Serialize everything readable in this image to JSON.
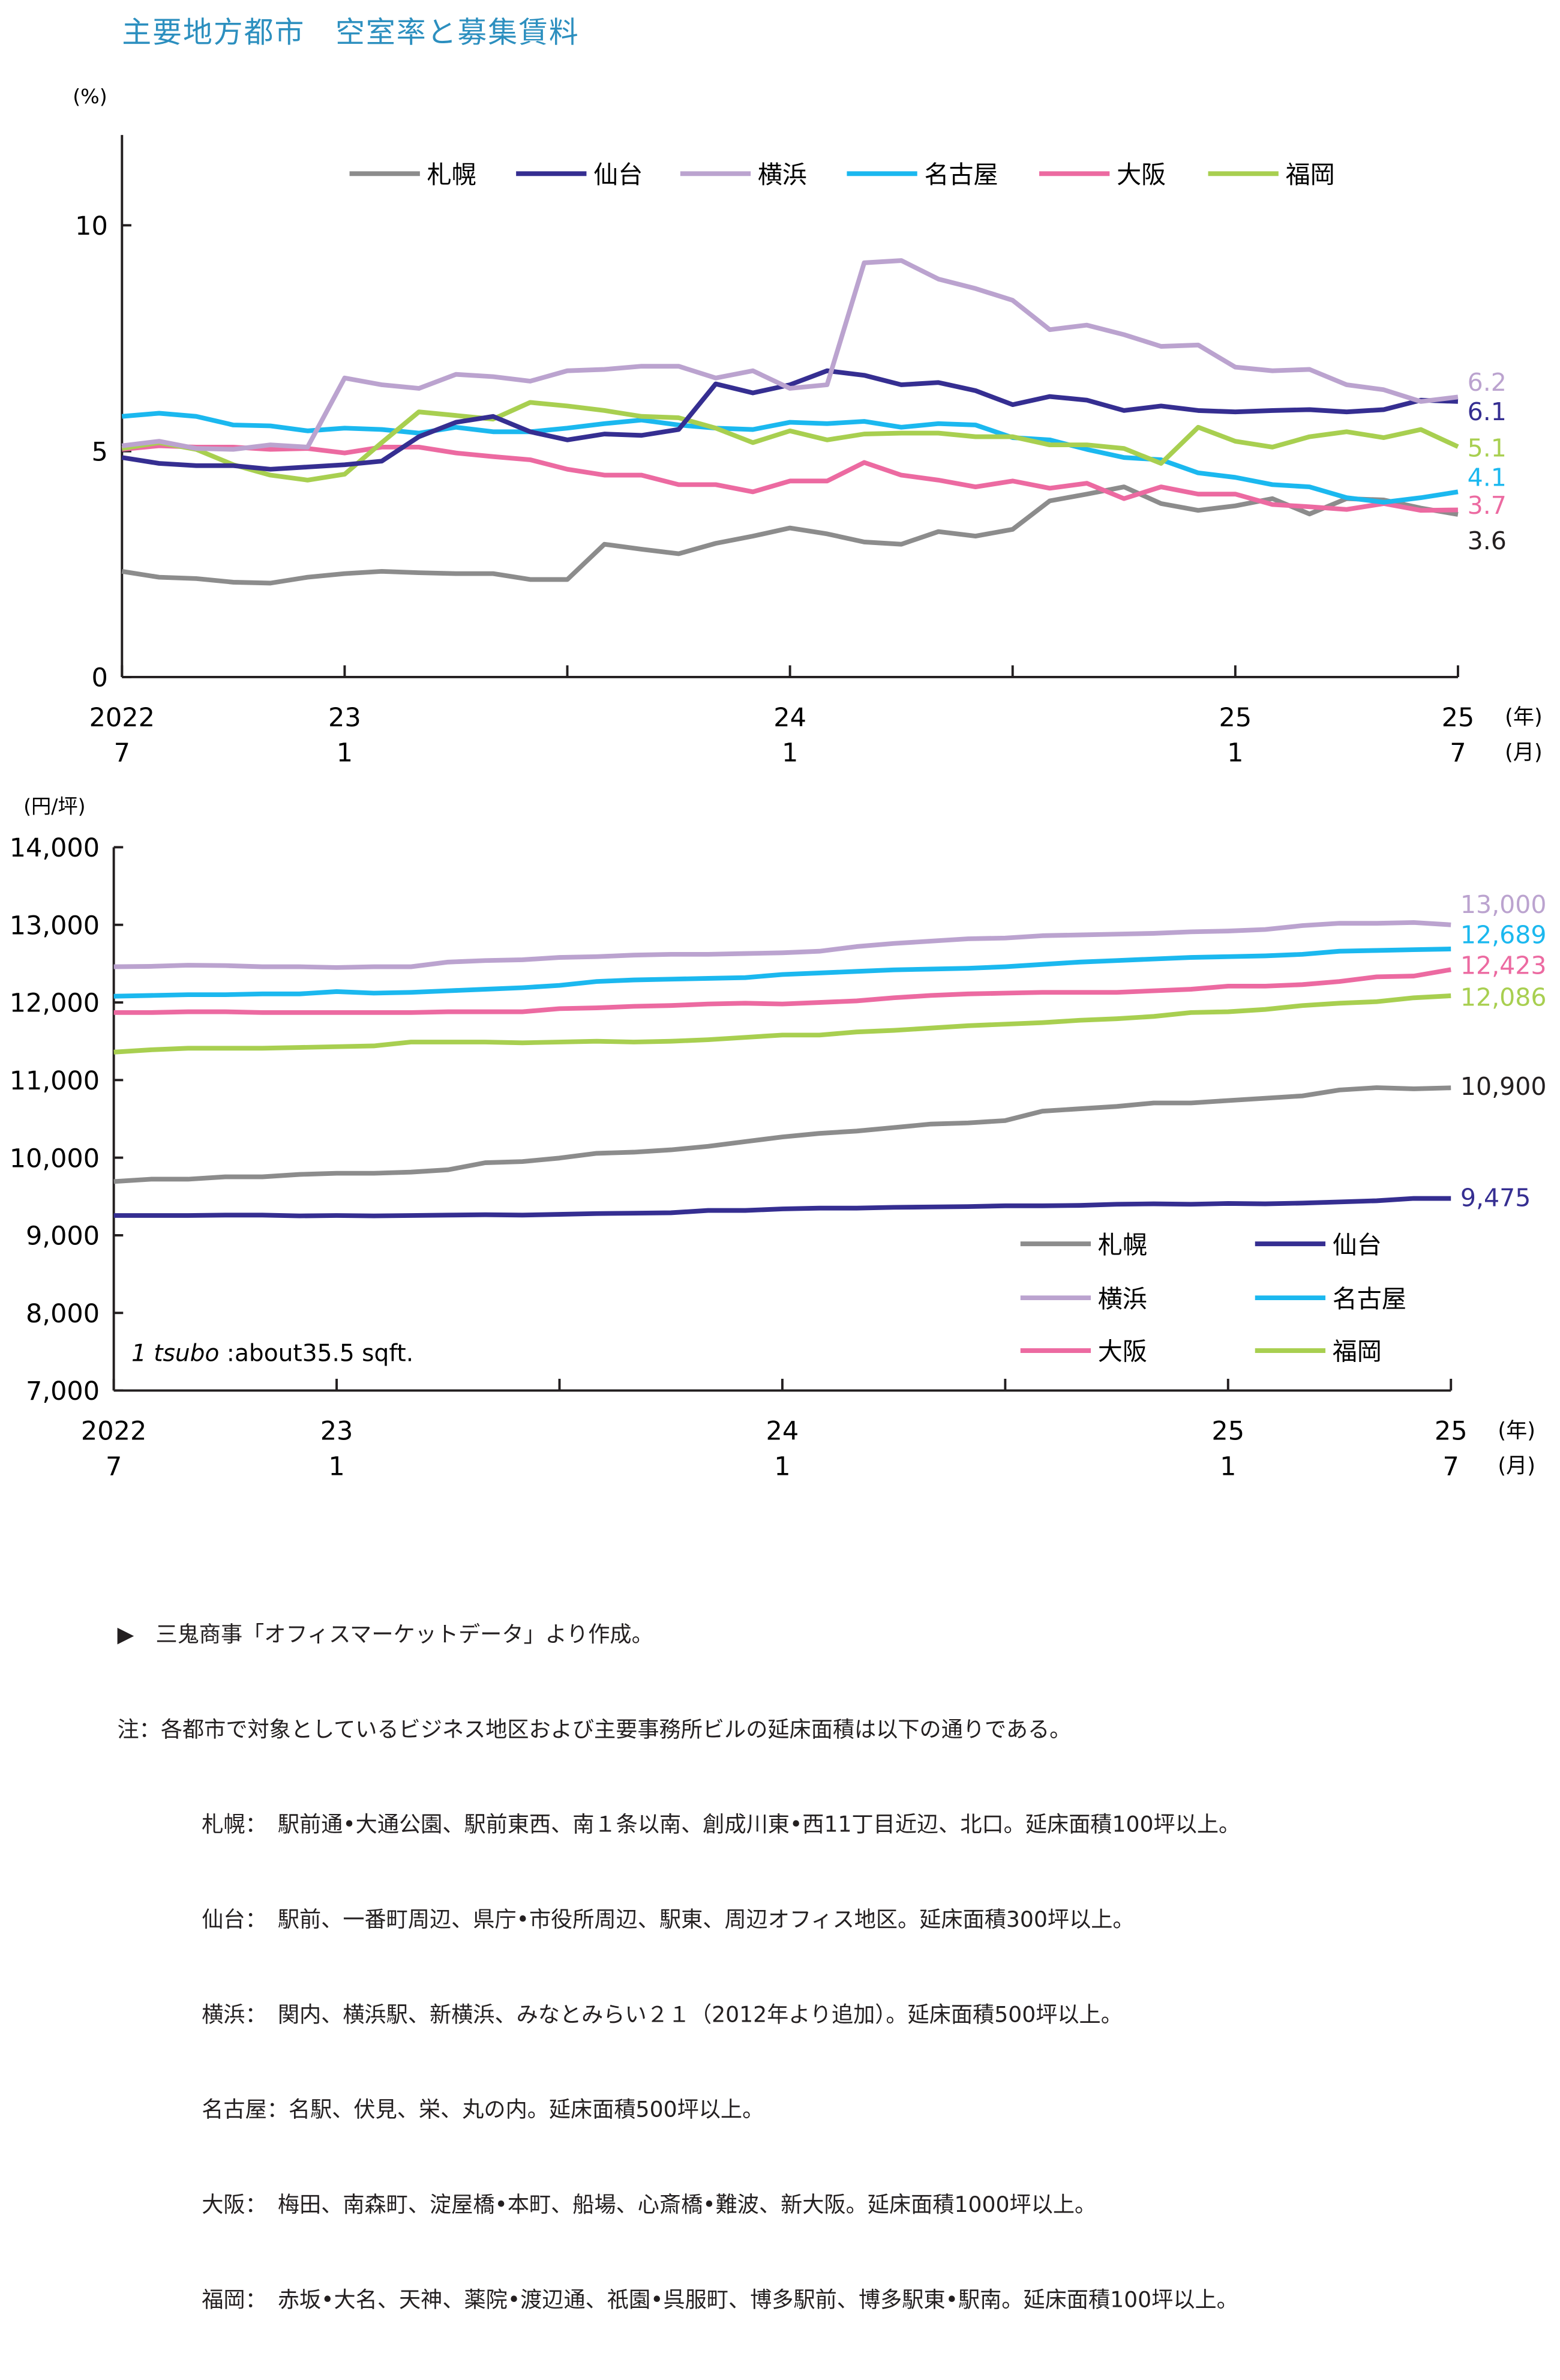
{
  "title": "主要地方都市　空室率と募集賃料",
  "colors": {
    "title": "#2c8fbf",
    "札幌": "#8c8c8c",
    "仙台": "#352e91",
    "横浜": "#bba3cf",
    "名古屋": "#1bb8ef",
    "大阪": "#ec6aa1",
    "福岡": "#a8cf50"
  },
  "chart_data": [
    {
      "type": "line",
      "ylabel": "(%)",
      "ylim": [
        0,
        12
      ],
      "yticks": [
        "0",
        "5",
        "10"
      ],
      "ytick_values": [
        0,
        5,
        10
      ],
      "x_start": "2022-07",
      "x_end": "2025-07",
      "xticks": [
        {
          "year": "2022",
          "month": "7"
        },
        {
          "year": "23",
          "month": "1"
        },
        {
          "year": "24",
          "month": "1"
        },
        {
          "year": "25",
          "month": "1"
        },
        {
          "year": "25",
          "month": "7"
        }
      ],
      "x_unit_year": "(年)",
      "x_unit_month": "(月)",
      "legend_position": "top",
      "series": [
        {
          "name": "札幌",
          "end_label": "3.6",
          "label_color": "#231f20",
          "values": [
            2.34,
            2.21,
            2.18,
            2.1,
            2.08,
            2.21,
            2.29,
            2.34,
            2.31,
            2.29,
            2.29,
            2.16,
            2.16,
            2.94,
            2.83,
            2.73,
            2.96,
            3.12,
            3.3,
            3.17,
            2.99,
            2.94,
            3.22,
            3.12,
            3.27,
            3.9,
            4.05,
            4.21,
            3.84,
            3.69,
            3.79,
            3.95,
            3.61,
            3.95,
            3.92,
            3.74,
            3.6
          ]
        },
        {
          "name": "仙台",
          "end_label": "6.1",
          "label_color": "#352e91",
          "values": [
            4.86,
            4.73,
            4.68,
            4.68,
            4.6,
            4.65,
            4.7,
            4.78,
            5.32,
            5.64,
            5.77,
            5.43,
            5.25,
            5.38,
            5.35,
            5.48,
            6.49,
            6.29,
            6.47,
            6.78,
            6.68,
            6.47,
            6.52,
            6.34,
            6.03,
            6.21,
            6.13,
            5.9,
            6.0,
            5.9,
            5.87,
            5.9,
            5.92,
            5.87,
            5.92,
            6.13,
            6.1
          ]
        },
        {
          "name": "横浜",
          "end_label": "6.2",
          "label_color": "#bba3cf",
          "values": [
            5.12,
            5.22,
            5.06,
            5.04,
            5.14,
            5.09,
            6.62,
            6.47,
            6.39,
            6.7,
            6.65,
            6.55,
            6.78,
            6.81,
            6.88,
            6.88,
            6.62,
            6.78,
            6.39,
            6.47,
            9.17,
            9.22,
            8.81,
            8.6,
            8.34,
            7.69,
            7.79,
            7.58,
            7.32,
            7.35,
            6.86,
            6.78,
            6.81,
            6.47,
            6.36,
            6.1,
            6.2
          ]
        },
        {
          "name": "名古屋",
          "end_label": "4.1",
          "label_color": "#1bb8ef",
          "values": [
            5.77,
            5.84,
            5.77,
            5.58,
            5.56,
            5.45,
            5.51,
            5.48,
            5.4,
            5.53,
            5.43,
            5.43,
            5.51,
            5.61,
            5.69,
            5.58,
            5.51,
            5.48,
            5.64,
            5.61,
            5.66,
            5.53,
            5.61,
            5.58,
            5.3,
            5.25,
            5.04,
            4.86,
            4.81,
            4.52,
            4.42,
            4.26,
            4.21,
            3.97,
            3.87,
            3.97,
            4.1
          ]
        },
        {
          "name": "大阪",
          "end_label": "3.7",
          "label_color": "#ec6aa1",
          "values": [
            5.04,
            5.12,
            5.09,
            5.09,
            5.04,
            5.06,
            4.96,
            5.09,
            5.09,
            4.96,
            4.88,
            4.81,
            4.6,
            4.47,
            4.47,
            4.26,
            4.26,
            4.1,
            4.34,
            4.34,
            4.75,
            4.47,
            4.36,
            4.21,
            4.34,
            4.18,
            4.29,
            3.95,
            4.21,
            4.05,
            4.05,
            3.82,
            3.77,
            3.71,
            3.84,
            3.69,
            3.7
          ]
        },
        {
          "name": "福岡",
          "end_label": "5.1",
          "label_color": "#a8cf50",
          "values": [
            5.06,
            5.19,
            5.04,
            4.7,
            4.47,
            4.36,
            4.49,
            5.19,
            5.87,
            5.79,
            5.71,
            6.08,
            6.0,
            5.9,
            5.77,
            5.74,
            5.51,
            5.19,
            5.45,
            5.25,
            5.38,
            5.4,
            5.4,
            5.32,
            5.32,
            5.14,
            5.14,
            5.06,
            4.73,
            5.53,
            5.22,
            5.09,
            5.32,
            5.43,
            5.3,
            5.48,
            5.1
          ]
        }
      ]
    },
    {
      "type": "line",
      "ylabel": "(円/坪)",
      "ylim": [
        7000,
        14000
      ],
      "yticks": [
        "7,000",
        "8,000",
        "9,000",
        "10,000",
        "11,000",
        "12,000",
        "13,000",
        "14,000"
      ],
      "ytick_values": [
        7000,
        8000,
        9000,
        10000,
        11000,
        12000,
        13000,
        14000
      ],
      "x_start": "2022-07",
      "x_end": "2025-07",
      "xticks": [
        {
          "year": "2022",
          "month": "7"
        },
        {
          "year": "23",
          "month": "1"
        },
        {
          "year": "24",
          "month": "1"
        },
        {
          "year": "25",
          "month": "1"
        },
        {
          "year": "25",
          "month": "7"
        }
      ],
      "x_unit_year": "(年)",
      "x_unit_month": "(月)",
      "legend_position": "bottom-right",
      "annotation": {
        "italic": "1 tsubo",
        "rest": " :about35.5 sqft."
      },
      "series": [
        {
          "name": "札幌",
          "end_label": "10,900",
          "label_color": "#231f20",
          "values": [
            9693,
            9723,
            9723,
            9753,
            9753,
            9784,
            9799,
            9799,
            9814,
            9844,
            9935,
            9950,
            9995,
            10056,
            10071,
            10101,
            10146,
            10207,
            10267,
            10313,
            10343,
            10388,
            10433,
            10448,
            10478,
            10599,
            10630,
            10660,
            10705,
            10705,
            10736,
            10766,
            10796,
            10872,
            10902,
            10887,
            10900
          ]
        },
        {
          "name": "仙台",
          "end_label": "9,475",
          "label_color": "#352e91",
          "values": [
            9255,
            9255,
            9255,
            9260,
            9260,
            9250,
            9255,
            9250,
            9255,
            9260,
            9265,
            9260,
            9270,
            9280,
            9285,
            9290,
            9320,
            9320,
            9340,
            9350,
            9350,
            9360,
            9365,
            9370,
            9380,
            9380,
            9385,
            9400,
            9405,
            9400,
            9410,
            9405,
            9415,
            9430,
            9445,
            9475,
            9475
          ]
        },
        {
          "name": "横浜",
          "end_label": "13,000",
          "label_color": "#bba3cf",
          "values": [
            12460,
            12465,
            12480,
            12475,
            12460,
            12460,
            12450,
            12460,
            12460,
            12520,
            12540,
            12550,
            12580,
            12590,
            12610,
            12620,
            12620,
            12630,
            12640,
            12660,
            12720,
            12760,
            12790,
            12820,
            12830,
            12860,
            12870,
            12880,
            12890,
            12910,
            12920,
            12940,
            12990,
            13020,
            13020,
            13030,
            13000
          ]
        },
        {
          "name": "名古屋",
          "end_label": "12,689",
          "label_color": "#1bb8ef",
          "values": [
            12080,
            12090,
            12100,
            12100,
            12110,
            12110,
            12140,
            12120,
            12130,
            12150,
            12170,
            12190,
            12220,
            12270,
            12290,
            12300,
            12310,
            12320,
            12360,
            12380,
            12400,
            12420,
            12430,
            12440,
            12460,
            12490,
            12520,
            12540,
            12560,
            12580,
            12590,
            12600,
            12620,
            12660,
            12670,
            12680,
            12689
          ]
        },
        {
          "name": "大阪",
          "end_label": "12,423",
          "label_color": "#ec6aa1",
          "values": [
            11870,
            11870,
            11880,
            11880,
            11870,
            11870,
            11870,
            11870,
            11870,
            11880,
            11880,
            11880,
            11920,
            11930,
            11950,
            11960,
            11980,
            11990,
            11980,
            12000,
            12020,
            12060,
            12090,
            12110,
            12120,
            12130,
            12130,
            12130,
            12150,
            12170,
            12210,
            12210,
            12230,
            12270,
            12330,
            12340,
            12423
          ]
        },
        {
          "name": "福岡",
          "end_label": "12,086",
          "label_color": "#a8cf50",
          "values": [
            11360,
            11390,
            11410,
            11410,
            11410,
            11420,
            11430,
            11440,
            11490,
            11490,
            11490,
            11480,
            11490,
            11500,
            11490,
            11500,
            11520,
            11550,
            11580,
            11580,
            11620,
            11640,
            11670,
            11700,
            11720,
            11740,
            11770,
            11790,
            11820,
            11870,
            11880,
            11910,
            11960,
            11990,
            12010,
            12060,
            12086
          ]
        }
      ]
    }
  ],
  "notes": {
    "source": "▶　三鬼商事「オフィスマーケットデータ」より作成。",
    "note": "注：各都市で対象としているビジネス地区および主要事務所ビルの延床面積は以下の通りである。",
    "cities": [
      "札幌：　駅前通•大通公園、駅前東西、南１条以南、創成川東•西11丁目近辺、北口。延床面積100坪以上。",
      "仙台：　駅前、一番町周辺、県庁•市役所周辺、駅東、周辺オフィス地区。延床面積300坪以上。",
      "横浜：　関内、横浜駅、新横浜、みなとみらい２１（2012年より追加）。延床面積500坪以上。",
      "名古屋：名駅、伏見、栄、丸の内。延床面積500坪以上。",
      "大阪：　梅田、南森町、淀屋橋•本町、船場、心斎橋•難波、新大阪。延床面積1000坪以上。",
      "福岡：　赤坂•大名、天神、薬院•渡辺通、祇園•呉服町、博多駅前、博多駅東•駅南。延床面積100坪以上。"
    ]
  }
}
